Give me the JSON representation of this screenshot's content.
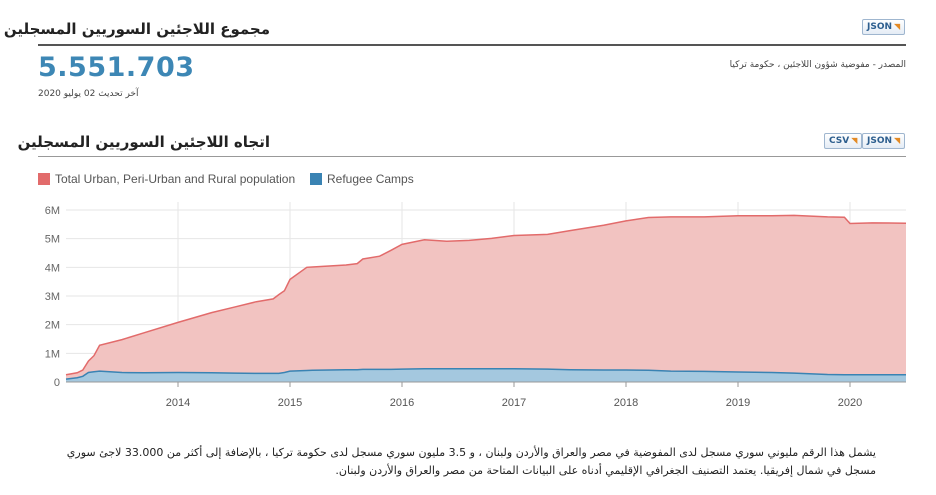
{
  "header": {
    "title": "مجموع اللاجئين السوريين المسجلين",
    "json_label": "JSON"
  },
  "summary": {
    "total": "5.551.703",
    "updated": "آخر تحديث 02 يوليو 2020",
    "source": "المصدر - مفوضية شؤون اللاجئين ، حكومة تركيا"
  },
  "trend": {
    "title": "اتجاه اللاجئين السوريين المسجلين",
    "csv_label": "CSV",
    "json_label": "JSON"
  },
  "description": "يشمل هذا الرقم مليوني سوري مسجل لدى المفوضية في مصر والعراق والأردن ولبنان ، و 3.5 مليون سوري مسجل لدى حكومة تركيا ، بالإضافة إلى أكثر من 33.000 لاجئ سوري مسجل في شمال إفريقيا. يعتمد التصنيف الجغرافي الإقليمي أدناه على البيانات المتاحة من مصر والعراق والأردن ولبنان.",
  "colors": {
    "urban": "#e26b6b",
    "urban_fill": "#f2c3c1",
    "camps": "#3a83b3",
    "camps_fill": "#a4c8df",
    "accent": "#3d87b5"
  },
  "chart_data": {
    "type": "area",
    "stacked": true,
    "xlim": [
      2013.0,
      2020.5
    ],
    "ylim": [
      0,
      6000000
    ],
    "yticks": [
      0,
      1000000,
      2000000,
      3000000,
      4000000,
      5000000,
      6000000
    ],
    "ytick_labels": [
      "0",
      "1M",
      "2M",
      "3M",
      "4M",
      "5M",
      "6M"
    ],
    "xticks": [
      2014,
      2015,
      2016,
      2017,
      2018,
      2019,
      2020
    ],
    "xtick_labels": [
      "2014",
      "2015",
      "2016",
      "2017",
      "2018",
      "2019",
      "2020"
    ],
    "legend_position": "top-left",
    "grid": true,
    "x": [
      2013.0,
      2013.1,
      2013.15,
      2013.2,
      2013.25,
      2013.3,
      2013.5,
      2013.7,
      2014.0,
      2014.3,
      2014.5,
      2014.7,
      2014.85,
      2014.9,
      2014.95,
      2015.0,
      2015.15,
      2015.2,
      2015.5,
      2015.6,
      2015.65,
      2015.8,
      2015.9,
      2016.0,
      2016.2,
      2016.4,
      2016.6,
      2016.8,
      2017.0,
      2017.3,
      2017.5,
      2017.8,
      2018.0,
      2018.2,
      2018.4,
      2018.7,
      2019.0,
      2019.3,
      2019.5,
      2019.8,
      2019.95,
      2020.0,
      2020.2,
      2020.5
    ],
    "series": [
      {
        "name": "Total Urban, Peri-Urban and Rural population",
        "values": [
          150000,
          170000,
          220000,
          400000,
          560000,
          900000,
          1150000,
          1400000,
          1750000,
          2100000,
          2300000,
          2500000,
          2600000,
          2750000,
          2850000,
          3200000,
          3600000,
          3600000,
          3650000,
          3700000,
          3850000,
          3950000,
          4150000,
          4350000,
          4500000,
          4450000,
          4480000,
          4550000,
          4650000,
          4700000,
          4850000,
          5050000,
          5200000,
          5330000,
          5380000,
          5390000,
          5450000,
          5470000,
          5500000,
          5500000,
          5500000,
          5280000,
          5300000,
          5290000
        ]
      },
      {
        "name": "Refugee Camps",
        "values": [
          100000,
          150000,
          200000,
          330000,
          360000,
          380000,
          330000,
          320000,
          330000,
          320000,
          310000,
          300000,
          300000,
          300000,
          330000,
          380000,
          400000,
          410000,
          430000,
          430000,
          440000,
          440000,
          440000,
          450000,
          460000,
          460000,
          460000,
          460000,
          460000,
          450000,
          430000,
          420000,
          420000,
          410000,
          380000,
          370000,
          350000,
          330000,
          310000,
          260000,
          250000,
          250000,
          250000,
          250000
        ]
      }
    ]
  }
}
